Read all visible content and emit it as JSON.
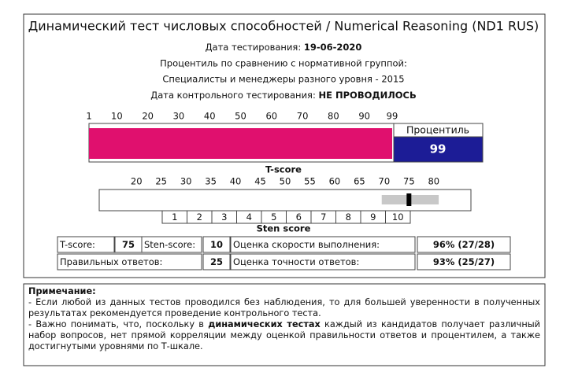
{
  "header": {
    "title": "Динамический тест числовых способностей / Numerical Reasoning (ND1 RUS)",
    "test_date_label": "Дата тестирования:",
    "test_date": "19-06-2020",
    "norm_group_label": "Процентиль по сравнению с нормативной группой:",
    "norm_group": "Специалисты и менеджеры разного уровня - 2015",
    "control_date_label": "Дата контрольного тестирования:",
    "control_date": "НЕ ПРОВОДИЛОСЬ"
  },
  "percentile": {
    "label": "Процентиль",
    "value": 99,
    "color": "#e0106e",
    "box_color": "#1c1c96",
    "xlim": [
      1,
      99
    ],
    "xticks": [
      1,
      10,
      20,
      30,
      40,
      50,
      60,
      70,
      80,
      90,
      99
    ]
  },
  "t_score": {
    "title": "T-score",
    "value": 75,
    "interval": [
      69.5,
      81
    ],
    "xlim": [
      12.5,
      87.5
    ],
    "xticks": [
      20,
      25,
      30,
      35,
      40,
      45,
      50,
      55,
      60,
      65,
      70,
      75,
      80
    ]
  },
  "sten": {
    "title": "Sten score",
    "categories": [
      1,
      2,
      3,
      4,
      5,
      6,
      7,
      8,
      9,
      10
    ]
  },
  "results": {
    "rows": [
      [
        "T-score:",
        "75",
        "Sten-score:",
        "10",
        "Оценка скорости выполнения:",
        "96% (27/28)"
      ],
      [
        "Правильных ответов:",
        "25",
        "Оценка точности ответов:",
        "93% (25/27)"
      ]
    ]
  },
  "note": {
    "title": "Примечание:",
    "paragraph_1": "- Если любой из данных тестов проводился без наблюдения, то для большей уверенности в полученных результатах рекомендуется проведение контрольного теста.",
    "paragraph_2": [
      "- Важно понимать, что, поскольку в ",
      "динамических тестах",
      " каждый из кандидатов получает различный набор вопросов, нет прямой корреляции между оценкой правильности ответов и процентилем, а также достигнутыми уровнями по Т-шкале."
    ]
  }
}
